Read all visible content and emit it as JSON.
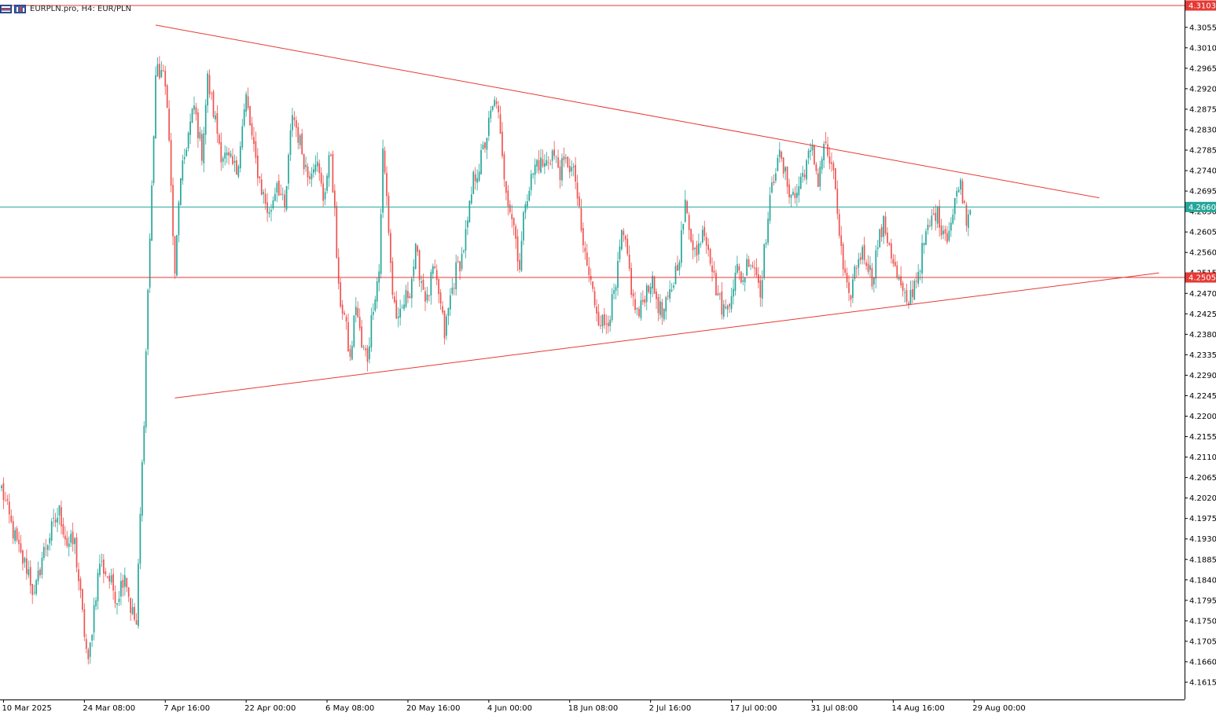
{
  "header": {
    "symbol": "EURPLN.pro",
    "timeframe": "H4:",
    "description": "EUR/PLN",
    "icons": [
      "trade-panel-icon",
      "chart-icon"
    ]
  },
  "chart_data": {
    "type": "candlestick",
    "grid": false,
    "colors": {
      "bull": "#26a69a",
      "bear": "#ef5350",
      "resistance": "#e53935",
      "current": "#26a69a",
      "trendline": "#e53935",
      "axis": "#000000"
    },
    "ylim": [
      4.158,
      4.312
    ],
    "y_ticks": [
      "4.3055",
      "4.3010",
      "4.2965",
      "4.2920",
      "4.2875",
      "4.2830",
      "4.2785",
      "4.2740",
      "4.2695",
      "4.2650",
      "4.2605",
      "4.2560",
      "4.2515",
      "4.2470",
      "4.2425",
      "4.2380",
      "4.2335",
      "4.2290",
      "4.2245",
      "4.2200",
      "4.2155",
      "4.2110",
      "4.2065",
      "4.2020",
      "4.1975",
      "4.1930",
      "4.1885",
      "4.1840",
      "4.1795",
      "4.1750",
      "4.1705",
      "4.1660",
      "4.1615"
    ],
    "x_ticks": [
      {
        "label": "10 Mar 2025",
        "bar": 1
      },
      {
        "label": "24 Mar 08:00",
        "bar": 43
      },
      {
        "label": "7 Apr 16:00",
        "bar": 85
      },
      {
        "label": "22 Apr 00:00",
        "bar": 127
      },
      {
        "label": "6 May 08:00",
        "bar": 169
      },
      {
        "label": "20 May 16:00",
        "bar": 211
      },
      {
        "label": "4 Jun 00:00",
        "bar": 253
      },
      {
        "label": "18 Jun 08:00",
        "bar": 295
      },
      {
        "label": "2 Jul 16:00",
        "bar": 337
      },
      {
        "label": "17 Jul 00:00",
        "bar": 379
      },
      {
        "label": "31 Jul 08:00",
        "bar": 421
      },
      {
        "label": "14 Aug 16:00",
        "bar": 463
      },
      {
        "label": "29 Aug 00:00",
        "bar": 505
      }
    ],
    "horizontal_lines": [
      {
        "name": "upper-level-line",
        "price": 4.3103,
        "label": "4.3103",
        "color": "#e53935"
      },
      {
        "name": "current-price-line",
        "price": 4.266,
        "label": "4.2660",
        "color": "#26a69a"
      },
      {
        "name": "support-level-line",
        "price": 4.2505,
        "label": "4.2505",
        "color": "#e53935"
      }
    ],
    "trendlines": [
      {
        "name": "descending-trendline",
        "from": {
          "bar": 80,
          "price": 4.306
        },
        "to": {
          "bar": 570,
          "price": 4.268
        }
      },
      {
        "name": "ascending-trendline",
        "from": {
          "bar": 90,
          "price": 4.224
        },
        "to": {
          "bar": 601,
          "price": 4.2515
        }
      }
    ],
    "anchors": [
      [
        0,
        4.204
      ],
      [
        5,
        4.196
      ],
      [
        10,
        4.189
      ],
      [
        14,
        4.186
      ],
      [
        17,
        4.18
      ],
      [
        21,
        4.189
      ],
      [
        26,
        4.195
      ],
      [
        30,
        4.199
      ],
      [
        34,
        4.192
      ],
      [
        38,
        4.192
      ],
      [
        42,
        4.176
      ],
      [
        45,
        4.165
      ],
      [
        48,
        4.178
      ],
      [
        51,
        4.188
      ],
      [
        55,
        4.185
      ],
      [
        60,
        4.18
      ],
      [
        64,
        4.186
      ],
      [
        67,
        4.178
      ],
      [
        70,
        4.174
      ],
      [
        72,
        4.198
      ],
      [
        74,
        4.22
      ],
      [
        76,
        4.248
      ],
      [
        78,
        4.27
      ],
      [
        80,
        4.295
      ],
      [
        83,
        4.296
      ],
      [
        86,
        4.29
      ],
      [
        88,
        4.27
      ],
      [
        90,
        4.25
      ],
      [
        92,
        4.268
      ],
      [
        96,
        4.28
      ],
      [
        100,
        4.288
      ],
      [
        104,
        4.278
      ],
      [
        107,
        4.294
      ],
      [
        110,
        4.287
      ],
      [
        114,
        4.278
      ],
      [
        118,
        4.276
      ],
      [
        122,
        4.274
      ],
      [
        127,
        4.29
      ],
      [
        131,
        4.278
      ],
      [
        135,
        4.27
      ],
      [
        139,
        4.264
      ],
      [
        143,
        4.272
      ],
      [
        147,
        4.265
      ],
      [
        151,
        4.287
      ],
      [
        155,
        4.28
      ],
      [
        159,
        4.273
      ],
      [
        163,
        4.277
      ],
      [
        167,
        4.268
      ],
      [
        171,
        4.278
      ],
      [
        173,
        4.264
      ],
      [
        175,
        4.247
      ],
      [
        178,
        4.242
      ],
      [
        181,
        4.232
      ],
      [
        184,
        4.245
      ],
      [
        187,
        4.235
      ],
      [
        190,
        4.233
      ],
      [
        193,
        4.245
      ],
      [
        196,
        4.252
      ],
      [
        198,
        4.278
      ],
      [
        200,
        4.268
      ],
      [
        203,
        4.247
      ],
      [
        206,
        4.24
      ],
      [
        209,
        4.245
      ],
      [
        212,
        4.248
      ],
      [
        215,
        4.256
      ],
      [
        218,
        4.25
      ],
      [
        221,
        4.245
      ],
      [
        224,
        4.252
      ],
      [
        227,
        4.247
      ],
      [
        230,
        4.238
      ],
      [
        233,
        4.246
      ],
      [
        236,
        4.252
      ],
      [
        239,
        4.255
      ],
      [
        242,
        4.262
      ],
      [
        245,
        4.272
      ],
      [
        248,
        4.275
      ],
      [
        251,
        4.28
      ],
      [
        254,
        4.286
      ],
      [
        257,
        4.29
      ],
      [
        260,
        4.276
      ],
      [
        263,
        4.268
      ],
      [
        266,
        4.262
      ],
      [
        269,
        4.253
      ],
      [
        272,
        4.268
      ],
      [
        275,
        4.272
      ],
      [
        278,
        4.276
      ],
      [
        282,
        4.275
      ],
      [
        286,
        4.278
      ],
      [
        290,
        4.274
      ],
      [
        294,
        4.276
      ],
      [
        298,
        4.272
      ],
      [
        301,
        4.26
      ],
      [
        304,
        4.253
      ],
      [
        307,
        4.247
      ],
      [
        310,
        4.242
      ],
      [
        313,
        4.24
      ],
      [
        316,
        4.243
      ],
      [
        319,
        4.248
      ],
      [
        322,
        4.26
      ],
      [
        325,
        4.255
      ],
      [
        328,
        4.245
      ],
      [
        331,
        4.242
      ],
      [
        334,
        4.247
      ],
      [
        337,
        4.25
      ],
      [
        340,
        4.246
      ],
      [
        343,
        4.242
      ],
      [
        346,
        4.245
      ],
      [
        349,
        4.25
      ],
      [
        352,
        4.256
      ],
      [
        355,
        4.266
      ],
      [
        358,
        4.26
      ],
      [
        361,
        4.255
      ],
      [
        364,
        4.262
      ],
      [
        367,
        4.258
      ],
      [
        370,
        4.25
      ],
      [
        373,
        4.245
      ],
      [
        376,
        4.243
      ],
      [
        379,
        4.248
      ],
      [
        382,
        4.252
      ],
      [
        385,
        4.25
      ],
      [
        388,
        4.255
      ],
      [
        391,
        4.253
      ],
      [
        394,
        4.248
      ],
      [
        397,
        4.26
      ],
      [
        400,
        4.27
      ],
      [
        403,
        4.278
      ],
      [
        406,
        4.274
      ],
      [
        409,
        4.27
      ],
      [
        412,
        4.268
      ],
      [
        415,
        4.272
      ],
      [
        418,
        4.276
      ],
      [
        421,
        4.278
      ],
      [
        424,
        4.272
      ],
      [
        427,
        4.28
      ],
      [
        430,
        4.276
      ],
      [
        433,
        4.27
      ],
      [
        435,
        4.26
      ],
      [
        437,
        4.252
      ],
      [
        440,
        4.245
      ],
      [
        443,
        4.252
      ],
      [
        446,
        4.256
      ],
      [
        449,
        4.255
      ],
      [
        452,
        4.25
      ],
      [
        455,
        4.258
      ],
      [
        458,
        4.262
      ],
      [
        461,
        4.258
      ],
      [
        464,
        4.252
      ],
      [
        467,
        4.248
      ],
      [
        470,
        4.244
      ],
      [
        473,
        4.248
      ],
      [
        476,
        4.252
      ],
      [
        479,
        4.258
      ],
      [
        482,
        4.262
      ],
      [
        485,
        4.265
      ],
      [
        488,
        4.262
      ],
      [
        491,
        4.26
      ],
      [
        494,
        4.264
      ],
      [
        497,
        4.272
      ],
      [
        499,
        4.269
      ],
      [
        501,
        4.264
      ],
      [
        503,
        4.266
      ]
    ]
  }
}
